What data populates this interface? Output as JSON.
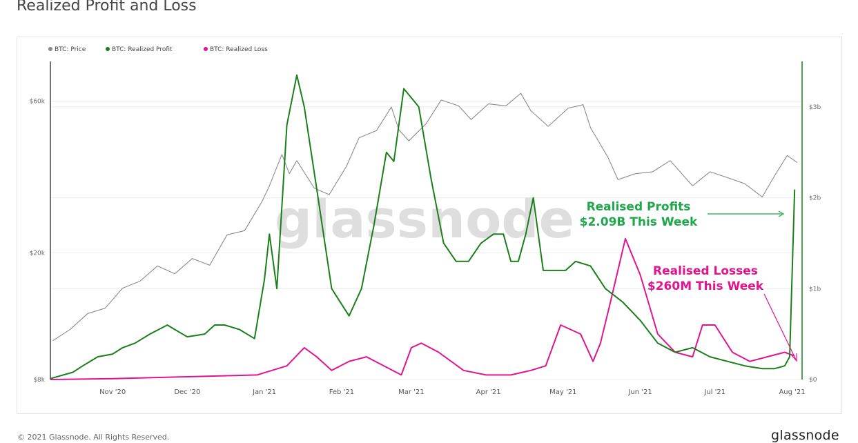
{
  "title": "Realized Profit and Loss",
  "footer": {
    "copyright": "© 2021 Glassnode. All Rights Reserved.",
    "logo": "glassnode"
  },
  "watermark": "glassnode",
  "colors": {
    "price": "#8a8a8a",
    "profit": "#1a7f1a",
    "loss": "#e0148f",
    "profit_annotation": "#1fa84a",
    "loss_annotation": "#e0148f"
  },
  "annotations": {
    "profit": {
      "line1": "Realised Profits",
      "line2": "$2.09B This Week"
    },
    "loss": {
      "line1": "Realised Losses",
      "line2": "$260M This Week"
    }
  },
  "chart_data": {
    "type": "line",
    "legend": {
      "placement": "top-left",
      "items": [
        "BTC: Price",
        "BTC: Realized Profit",
        "BTC: Realized Loss"
      ]
    },
    "x_ticks": [
      "Nov '20",
      "Dec '20",
      "Jan '21",
      "Feb '21",
      "Mar '21",
      "Apr '21",
      "May '21",
      "Jun '21",
      "Jul '21",
      "Aug '21"
    ],
    "x_range": [
      "2020-10-07",
      "2021-08-05"
    ],
    "y_left": {
      "scale": "log",
      "range": [
        8000,
        80000
      ],
      "ticks": [
        "$8k",
        "$20k",
        "$60k"
      ],
      "tick_values": [
        8000,
        20000,
        60000
      ]
    },
    "y_right": {
      "range": [
        0,
        3500000000
      ],
      "ticks": [
        "$0",
        "$1b",
        "$2b",
        "$3b"
      ],
      "tick_values": [
        0,
        1000000000,
        2000000000,
        3000000000
      ]
    },
    "grid": true,
    "series": [
      {
        "name": "BTC: Price",
        "axis": "left",
        "x": [
          "2020-10-08",
          "2020-10-15",
          "2020-10-22",
          "2020-10-29",
          "2020-11-05",
          "2020-11-12",
          "2020-11-19",
          "2020-11-26",
          "2020-12-03",
          "2020-12-10",
          "2020-12-17",
          "2020-12-24",
          "2020-12-31",
          "2021-01-03",
          "2021-01-08",
          "2021-01-11",
          "2021-01-14",
          "2021-01-21",
          "2021-01-27",
          "2021-02-03",
          "2021-02-08",
          "2021-02-15",
          "2021-02-21",
          "2021-02-24",
          "2021-02-28",
          "2021-03-07",
          "2021-03-13",
          "2021-03-20",
          "2021-03-25",
          "2021-04-01",
          "2021-04-08",
          "2021-04-14",
          "2021-04-18",
          "2021-04-25",
          "2021-05-03",
          "2021-05-09",
          "2021-05-12",
          "2021-05-19",
          "2021-05-23",
          "2021-05-30",
          "2021-06-06",
          "2021-06-13",
          "2021-06-22",
          "2021-06-29",
          "2021-07-06",
          "2021-07-13",
          "2021-07-20",
          "2021-07-25",
          "2021-07-30",
          "2021-08-03"
        ],
        "values": [
          10600,
          11500,
          12900,
          13400,
          15500,
          16300,
          18200,
          17200,
          19200,
          18300,
          22800,
          23500,
          29000,
          32500,
          40800,
          35500,
          39000,
          32000,
          30500,
          37500,
          46000,
          48500,
          57500,
          48800,
          45000,
          51000,
          60500,
          58000,
          52500,
          58800,
          58000,
          63500,
          56000,
          50000,
          57000,
          58500,
          49500,
          40000,
          34000,
          35500,
          36000,
          39000,
          32500,
          36000,
          34500,
          33000,
          30000,
          35000,
          40500,
          38500
        ]
      },
      {
        "name": "BTC: Realized Profit",
        "axis": "right",
        "x": [
          "2020-10-07",
          "2020-10-16",
          "2020-10-20",
          "2020-10-26",
          "2020-11-01",
          "2020-11-05",
          "2020-11-10",
          "2020-11-16",
          "2020-11-23",
          "2020-11-26",
          "2020-12-01",
          "2020-12-08",
          "2020-12-12",
          "2020-12-16",
          "2020-12-22",
          "2020-12-28",
          "2021-01-01",
          "2021-01-03",
          "2021-01-06",
          "2021-01-10",
          "2021-01-14",
          "2021-01-17",
          "2021-01-22",
          "2021-01-28",
          "2021-02-04",
          "2021-02-09",
          "2021-02-14",
          "2021-02-19",
          "2021-02-22",
          "2021-02-26",
          "2021-03-04",
          "2021-03-09",
          "2021-03-14",
          "2021-03-19",
          "2021-03-24",
          "2021-03-29",
          "2021-04-03",
          "2021-04-07",
          "2021-04-10",
          "2021-04-13",
          "2021-04-16",
          "2021-04-19",
          "2021-04-23",
          "2021-04-27",
          "2021-05-02",
          "2021-05-06",
          "2021-05-12",
          "2021-05-18",
          "2021-05-25",
          "2021-06-01",
          "2021-06-08",
          "2021-06-15",
          "2021-06-22",
          "2021-06-29",
          "2021-07-06",
          "2021-07-13",
          "2021-07-20",
          "2021-07-25",
          "2021-07-29",
          "2021-07-31",
          "2021-08-02"
        ],
        "values": [
          10000000.0,
          80000000.0,
          150000000.0,
          250000000.0,
          280000000.0,
          350000000.0,
          400000000.0,
          500000000.0,
          600000000.0,
          550000000.0,
          470000000.0,
          500000000.0,
          600000000.0,
          600000000.0,
          550000000.0,
          450000000.0,
          1100000000.0,
          1600000000.0,
          1000000000.0,
          2800000000.0,
          3350000000.0,
          3000000000.0,
          2100000000.0,
          1000000000.0,
          700000000.0,
          1000000000.0,
          1700000000.0,
          2500000000.0,
          2400000000.0,
          3200000000.0,
          3000000000.0,
          2200000000.0,
          1500000000.0,
          1300000000.0,
          1300000000.0,
          1500000000.0,
          1600000000.0,
          1600000000.0,
          1300000000.0,
          1300000000.0,
          1600000000.0,
          2000000000.0,
          1200000000.0,
          1200000000.0,
          1200000000.0,
          1300000000.0,
          1250000000.0,
          1000000000.0,
          850000000.0,
          650000000.0,
          400000000.0,
          300000000.0,
          350000000.0,
          250000000.0,
          200000000.0,
          150000000.0,
          120000000.0,
          120000000.0,
          150000000.0,
          250000000.0,
          2090000000.0
        ]
      },
      {
        "name": "BTC: Realized Loss",
        "axis": "right",
        "x": [
          "2020-10-07",
          "2020-11-01",
          "2020-12-01",
          "2020-12-29",
          "2021-01-10",
          "2021-01-17",
          "2021-01-22",
          "2021-01-28",
          "2021-02-04",
          "2021-02-11",
          "2021-02-18",
          "2021-02-25",
          "2021-03-01",
          "2021-03-05",
          "2021-03-12",
          "2021-03-22",
          "2021-03-31",
          "2021-04-10",
          "2021-04-18",
          "2021-04-24",
          "2021-04-30",
          "2021-05-08",
          "2021-05-13",
          "2021-05-16",
          "2021-05-20",
          "2021-05-26",
          "2021-06-01",
          "2021-06-08",
          "2021-06-15",
          "2021-06-22",
          "2021-06-26",
          "2021-07-01",
          "2021-07-08",
          "2021-07-15",
          "2021-07-22",
          "2021-07-29",
          "2021-08-02"
        ],
        "values": [
          0.0,
          10000000.0,
          30000000.0,
          50000000.0,
          150000000.0,
          350000000.0,
          250000000.0,
          100000000.0,
          200000000.0,
          250000000.0,
          150000000.0,
          50000000.0,
          350000000.0,
          400000000.0,
          300000000.0,
          100000000.0,
          50000000.0,
          50000000.0,
          100000000.0,
          150000000.0,
          600000000.0,
          500000000.0,
          200000000.0,
          400000000.0,
          850000000.0,
          1550000000.0,
          1150000000.0,
          500000000.0,
          300000000.0,
          250000000.0,
          600000000.0,
          600000000.0,
          300000000.0,
          200000000.0,
          250000000.0,
          300000000.0,
          260000000.0
        ]
      }
    ]
  }
}
